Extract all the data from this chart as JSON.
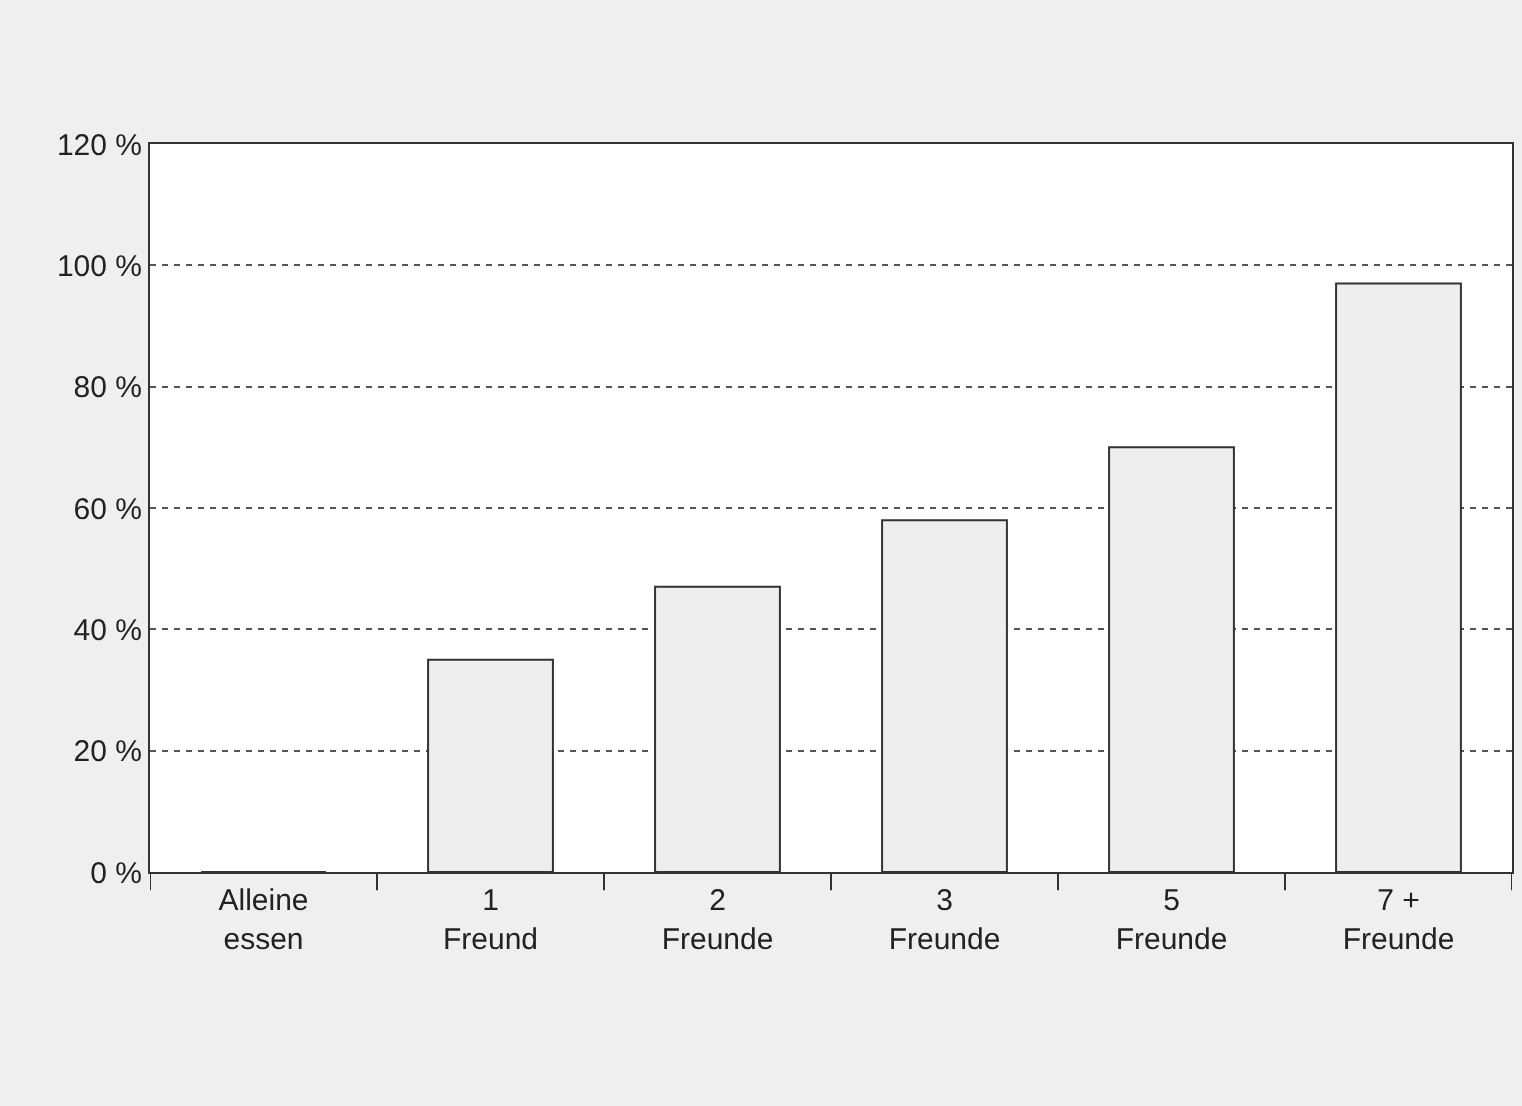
{
  "chart_data": {
    "type": "bar",
    "categories": [
      "Alleine\nessen",
      "1\nFreund",
      "2\nFreunde",
      "3\nFreunde",
      "5\nFreunde",
      "7 +\nFreunde"
    ],
    "values": [
      0,
      35,
      47,
      58,
      70,
      97
    ],
    "color": "#eeeeee",
    "ylim": [
      0,
      120
    ],
    "yticks": [
      {
        "value": 0,
        "label": "0 %"
      },
      {
        "value": 20,
        "label": "20 %"
      },
      {
        "value": 40,
        "label": "40 %"
      },
      {
        "value": 60,
        "label": "60 %"
      },
      {
        "value": 80,
        "label": "80 %"
      },
      {
        "value": 100,
        "label": "100 %"
      },
      {
        "value": 120,
        "label": "120 %"
      }
    ],
    "grid": "y",
    "legend": false
  }
}
